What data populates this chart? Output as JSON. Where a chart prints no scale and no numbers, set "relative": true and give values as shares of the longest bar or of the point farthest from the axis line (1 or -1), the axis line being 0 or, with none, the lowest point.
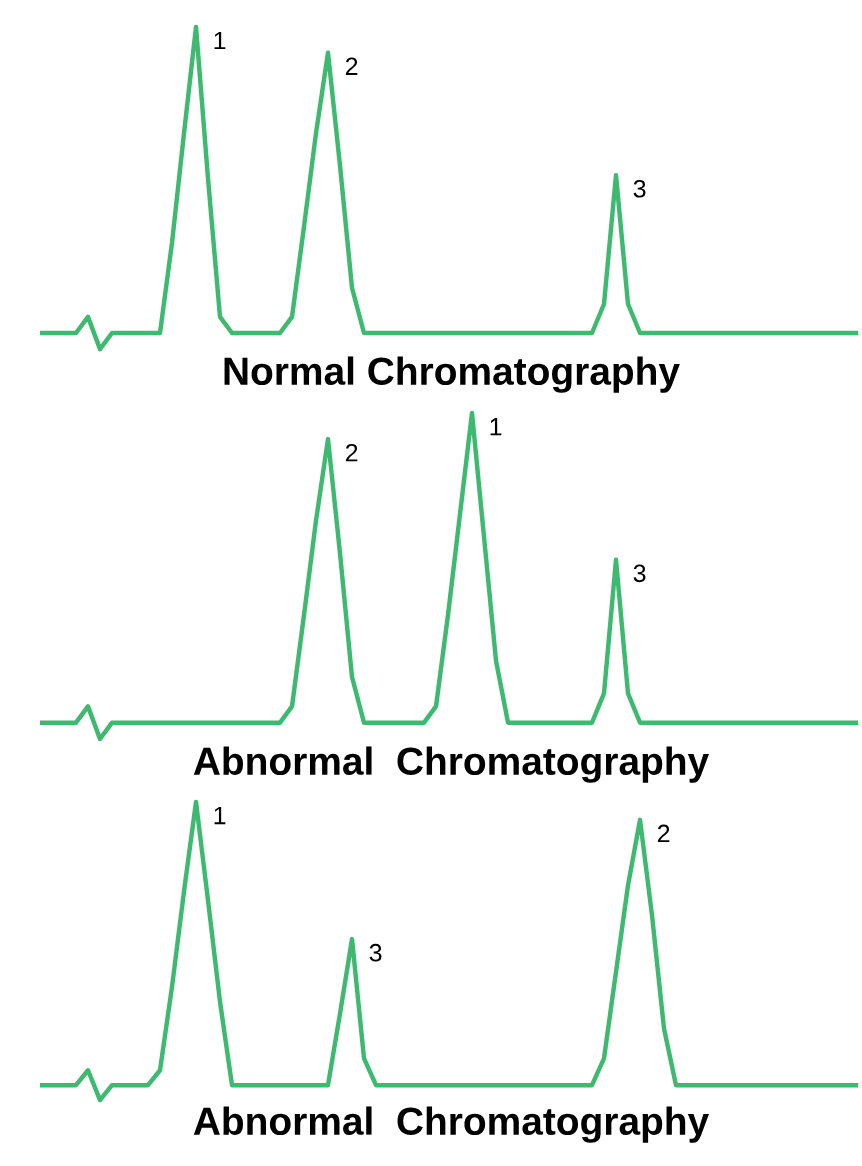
{
  "chart_data": [
    {
      "type": "line",
      "xlabel": "Normal Chromatography",
      "relative": true,
      "tick_labels": false,
      "marker": "none",
      "line_style": "solid",
      "categories": [
        null,
        null,
        null,
        null,
        null,
        null,
        null,
        null,
        null,
        null,
        null,
        null,
        null,
        null,
        null,
        null,
        null,
        null,
        null,
        null,
        null,
        null,
        null,
        null,
        null,
        null,
        null,
        null,
        null,
        null,
        null,
        null,
        null,
        null,
        null,
        null,
        null,
        null,
        null,
        null,
        null,
        null,
        null,
        null,
        null,
        null,
        null,
        null,
        null,
        null,
        null,
        null,
        null,
        null,
        null,
        null,
        null,
        null,
        null,
        null,
        null,
        null,
        null,
        null,
        null,
        null,
        null,
        null,
        null
      ],
      "series": [
        {
          "color": "#3dba6f",
          "values": [
            0.05,
            0.05,
            0.05,
            0.05,
            0.1,
            0,
            0.05,
            0.05,
            0.05,
            0.05,
            0.05,
            0.33,
            0.67,
            1,
            0.53,
            0.1,
            0.05,
            0.05,
            0.05,
            0.05,
            0.05,
            0.1,
            0.38,
            0.67,
            0.92,
            0.57,
            0.19,
            0.05,
            0.05,
            0.05,
            0.05,
            0.05,
            0.05,
            0.05,
            0.05,
            0.05,
            0.05,
            0.05,
            0.05,
            0.05,
            0.05,
            0.05,
            0.05,
            0.05,
            0.05,
            0.05,
            0.05,
            0.14,
            0.54,
            0.14,
            0.05,
            0.05,
            0.05,
            0.05,
            0.05,
            0.05,
            0.05,
            0.05,
            0.05,
            0.05,
            0.05,
            0.05,
            0.05,
            0.05,
            0.05,
            0.05,
            0.05,
            0.05,
            0.05
          ]
        }
      ],
      "annotations": [
        "1",
        "2",
        "3"
      ]
    },
    {
      "type": "line",
      "xlabel": "Abnormal  Chromatography",
      "relative": true,
      "tick_labels": false,
      "marker": "none",
      "line_style": "solid",
      "categories": [
        null,
        null,
        null,
        null,
        null,
        null,
        null,
        null,
        null,
        null,
        null,
        null,
        null,
        null,
        null,
        null,
        null,
        null,
        null,
        null,
        null,
        null,
        null,
        null,
        null,
        null,
        null,
        null,
        null,
        null,
        null,
        null,
        null,
        null,
        null,
        null,
        null,
        null,
        null,
        null,
        null,
        null,
        null,
        null,
        null,
        null,
        null,
        null,
        null,
        null,
        null,
        null,
        null,
        null,
        null,
        null,
        null,
        null,
        null,
        null,
        null,
        null,
        null,
        null,
        null,
        null,
        null,
        null,
        null
      ],
      "series": [
        {
          "color": "#3dba6f",
          "values": [
            0.05,
            0.05,
            0.05,
            0.05,
            0.1,
            0,
            0.05,
            0.05,
            0.05,
            0.05,
            0.05,
            0.05,
            0.05,
            0.05,
            0.05,
            0.05,
            0.05,
            0.05,
            0.05,
            0.05,
            0.05,
            0.1,
            0.38,
            0.67,
            0.92,
            0.57,
            0.19,
            0.05,
            0.05,
            0.05,
            0.05,
            0.05,
            0.05,
            0.1,
            0.38,
            0.69,
            1,
            0.62,
            0.24,
            0.05,
            0.05,
            0.05,
            0.05,
            0.05,
            0.05,
            0.05,
            0.05,
            0.14,
            0.55,
            0.14,
            0.05,
            0.05,
            0.05,
            0.05,
            0.05,
            0.05,
            0.05,
            0.05,
            0.05,
            0.05,
            0.05,
            0.05,
            0.05,
            0.05,
            0.05,
            0.05,
            0.05,
            0.05,
            0.05
          ]
        }
      ],
      "annotations": [
        "2",
        "1",
        "3"
      ]
    },
    {
      "type": "line",
      "xlabel": "Abnormal  Chromatography",
      "relative": true,
      "tick_labels": false,
      "marker": "none",
      "line_style": "solid",
      "categories": [
        null,
        null,
        null,
        null,
        null,
        null,
        null,
        null,
        null,
        null,
        null,
        null,
        null,
        null,
        null,
        null,
        null,
        null,
        null,
        null,
        null,
        null,
        null,
        null,
        null,
        null,
        null,
        null,
        null,
        null,
        null,
        null,
        null,
        null,
        null,
        null,
        null,
        null,
        null,
        null,
        null,
        null,
        null,
        null,
        null,
        null,
        null,
        null,
        null,
        null,
        null,
        null,
        null,
        null,
        null,
        null,
        null,
        null,
        null,
        null,
        null,
        null,
        null,
        null,
        null,
        null,
        null,
        null,
        null
      ],
      "series": [
        {
          "color": "#3dba6f",
          "values": [
            0.05,
            0.05,
            0.05,
            0.05,
            0.1,
            0,
            0.05,
            0.05,
            0.05,
            0.05,
            0.1,
            0.38,
            0.7,
            1,
            0.67,
            0.33,
            0.05,
            0.05,
            0.05,
            0.05,
            0.05,
            0.05,
            0.05,
            0.05,
            0.05,
            0.29,
            0.54,
            0.14,
            0.05,
            0.05,
            0.05,
            0.05,
            0.05,
            0.05,
            0.05,
            0.05,
            0.05,
            0.05,
            0.05,
            0.05,
            0.05,
            0.05,
            0.05,
            0.05,
            0.05,
            0.05,
            0.05,
            0.14,
            0.43,
            0.72,
            0.94,
            0.62,
            0.24,
            0.05,
            0.05,
            0.05,
            0.05,
            0.05,
            0.05,
            0.05,
            0.05,
            0.05,
            0.05,
            0.05,
            0.05,
            0.05,
            0.05,
            0.05,
            0.05
          ]
        }
      ],
      "annotations": [
        "1",
        "3",
        "2"
      ]
    }
  ]
}
